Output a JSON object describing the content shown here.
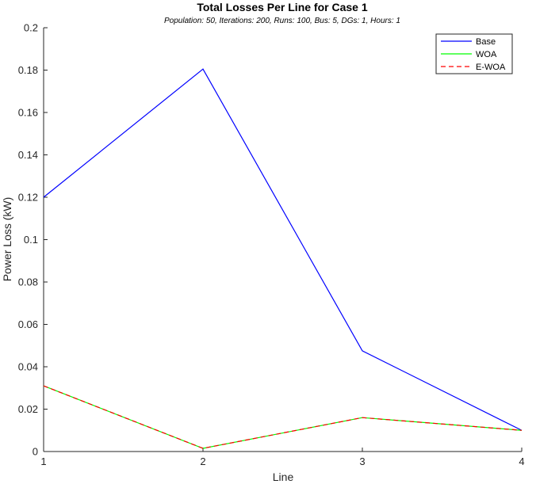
{
  "chart_data": {
    "type": "line",
    "title": "Total Losses Per Line for Case 1",
    "subtitle": "Population: 50, Iterations: 200, Runs: 100, Bus: 5, DGs: 1, Hours: 1",
    "xlabel": "Line",
    "ylabel": "Power Loss (kW)",
    "x": [
      1,
      2,
      3,
      4
    ],
    "xlim": [
      1,
      4
    ],
    "ylim": [
      0,
      0.2
    ],
    "xticks": [
      "1",
      "2",
      "3",
      "4"
    ],
    "yticks": [
      "0",
      "0.02",
      "0.04",
      "0.06",
      "0.08",
      "0.1",
      "0.12",
      "0.14",
      "0.16",
      "0.18",
      "0.2"
    ],
    "grid": false,
    "legend_position": "top-right",
    "series": [
      {
        "name": "Base",
        "values": [
          0.12,
          0.1805,
          0.0475,
          0.01
        ],
        "color": "#0000ff",
        "dash": "solid"
      },
      {
        "name": "WOA",
        "values": [
          0.031,
          0.0015,
          0.016,
          0.01
        ],
        "color": "#00ff00",
        "dash": "solid"
      },
      {
        "name": "E-WOA",
        "values": [
          0.031,
          0.0015,
          0.016,
          0.01
        ],
        "color": "#ff0000",
        "dash": "dashed"
      }
    ]
  }
}
